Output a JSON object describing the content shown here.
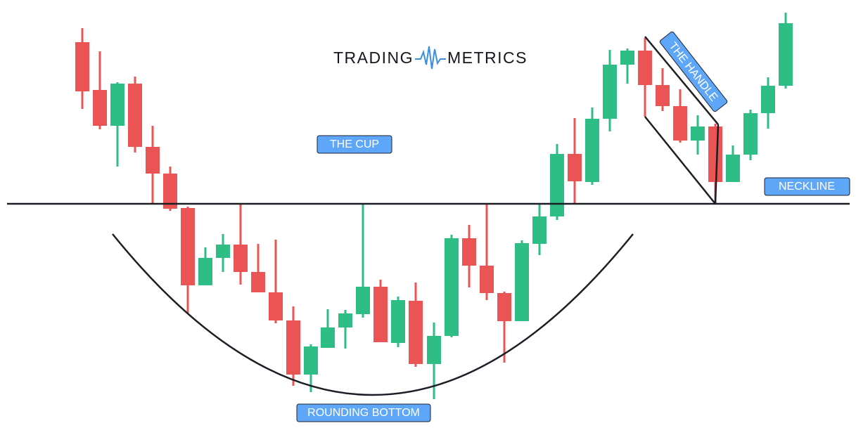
{
  "logo": {
    "left": "TRADING",
    "right": "METRICS"
  },
  "labels": {
    "cup": "THE CUP",
    "handle": "THE HANDLE",
    "neckline": "NECKLINE",
    "bottom": "ROUNDING BOTTOM"
  }
}
